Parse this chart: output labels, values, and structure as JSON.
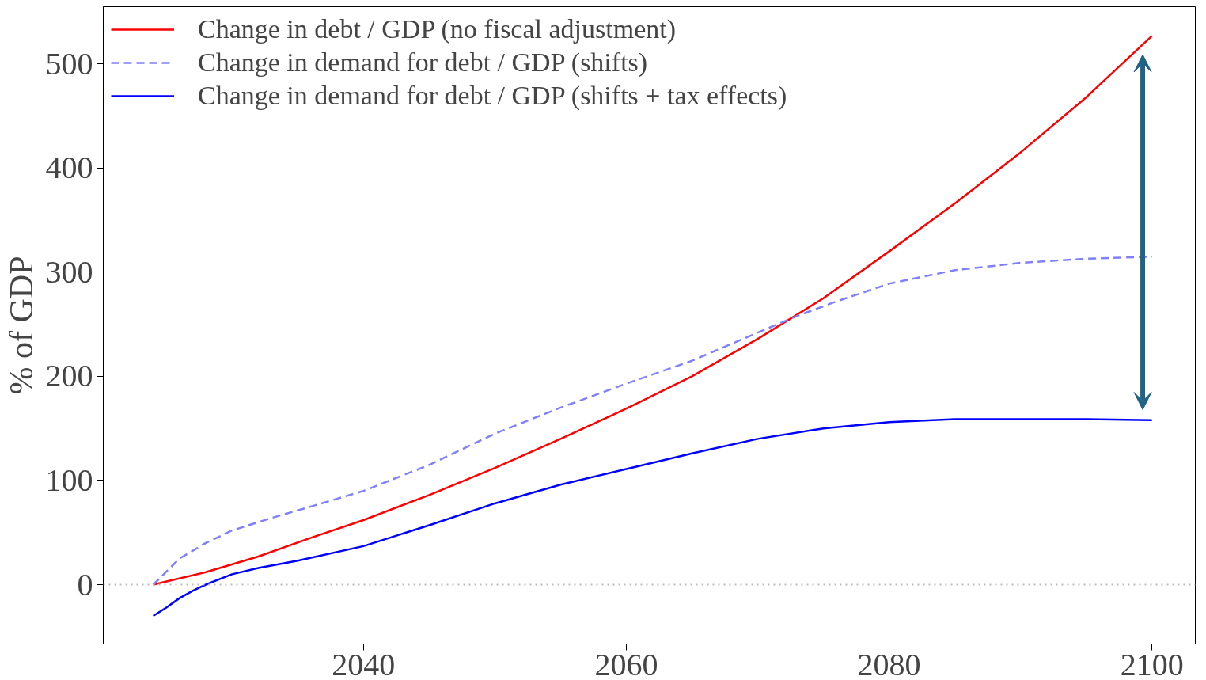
{
  "chart_data": {
    "type": "line",
    "ylabel": "% of GDP",
    "xlim": [
      2020.2,
      2103.3
    ],
    "ylim": [
      -57,
      555
    ],
    "xticks": [
      2040,
      2060,
      2080,
      2100
    ],
    "yticks": [
      0,
      100,
      200,
      300,
      400,
      500
    ],
    "grid": false,
    "legend": "top left",
    "ref_lines": [
      {
        "axis": "y",
        "value": 0,
        "color": "#bbbbbb",
        "line_style": "dotted"
      }
    ],
    "series": [
      {
        "name": "Change in debt / GDP (no fiscal adjustment)",
        "color": "#ff0000",
        "line_style": "solid",
        "x": [
          2024,
          2028,
          2032,
          2036,
          2040,
          2045,
          2050,
          2055,
          2060,
          2065,
          2070,
          2075,
          2080,
          2085,
          2090,
          2095,
          2100
        ],
        "values": [
          0,
          12,
          27,
          45,
          62,
          86,
          112,
          140,
          169,
          200,
          236,
          275,
          320,
          366,
          415,
          468,
          527
        ]
      },
      {
        "name": "Change in demand for debt / GDP (shifts)",
        "color": "#8080ff",
        "line_style": "dashed",
        "x": [
          2024,
          2026,
          2028,
          2030,
          2033,
          2036,
          2040,
          2045,
          2050,
          2055,
          2060,
          2065,
          2070,
          2073,
          2076,
          2080,
          2085,
          2090,
          2095,
          2100
        ],
        "values": [
          0,
          25,
          40,
          52,
          64,
          75,
          90,
          115,
          145,
          170,
          193,
          215,
          242,
          258,
          272,
          289,
          302,
          309,
          313,
          315
        ]
      },
      {
        "name": "Change in demand for debt / GDP (shifts + tax effects)",
        "color": "#0000ff",
        "line_style": "solid",
        "x": [
          2024,
          2025,
          2026,
          2027,
          2028,
          2029,
          2030,
          2032,
          2035,
          2040,
          2045,
          2050,
          2055,
          2060,
          2065,
          2070,
          2075,
          2080,
          2085,
          2090,
          2095,
          2100
        ],
        "values": [
          -30,
          -22,
          -13,
          -6,
          0,
          5,
          10,
          16,
          23,
          37,
          57,
          78,
          96,
          111,
          126,
          140,
          150,
          156,
          159,
          159,
          159,
          158
        ]
      }
    ]
  }
}
